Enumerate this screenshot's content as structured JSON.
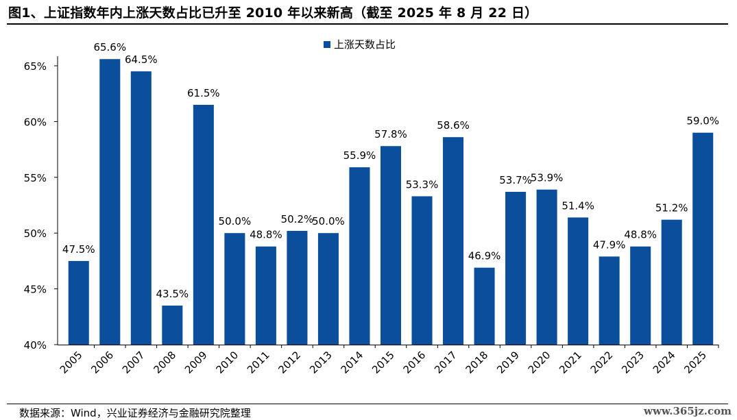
{
  "title": "图1、上证指数年内上涨天数占比已升至 2010 年以来新高（截至 2025 年 8 月 22 日）",
  "source": "数据来源：Wind，兴业证券经济与金融研究院整理",
  "watermark": "www.365jz.com",
  "colors": {
    "bar": "#0b4f9c",
    "axis": "#000000",
    "text": "#000000"
  },
  "chart_data": {
    "type": "bar",
    "title": "",
    "xlabel": "",
    "ylabel": "",
    "ylim": [
      40,
      65
    ],
    "yticks": [
      40,
      45,
      50,
      55,
      60,
      65
    ],
    "ytick_labels": [
      "40%",
      "45%",
      "50%",
      "55%",
      "60%",
      "65%"
    ],
    "grid": false,
    "legend_position": "top-center",
    "categories": [
      "2005",
      "2006",
      "2007",
      "2008",
      "2009",
      "2010",
      "2011",
      "2012",
      "2013",
      "2014",
      "2015",
      "2016",
      "2017",
      "2018",
      "2019",
      "2020",
      "2021",
      "2022",
      "2023",
      "2024",
      "2025"
    ],
    "series": [
      {
        "name": "上涨天数占比",
        "values": [
          47.5,
          65.6,
          64.5,
          43.5,
          61.5,
          50.0,
          48.8,
          50.2,
          50.0,
          55.9,
          57.8,
          53.3,
          58.6,
          46.9,
          53.7,
          53.9,
          51.4,
          47.9,
          48.8,
          51.2,
          59.0
        ],
        "labels": [
          "47.5%",
          "65.6%",
          "64.5%",
          "43.5%",
          "61.5%",
          "50.0%",
          "48.8%",
          "50.2%",
          "50.0%",
          "55.9%",
          "57.8%",
          "53.3%",
          "58.6%",
          "46.9%",
          "53.7%",
          "53.9%",
          "51.4%",
          "47.9%",
          "48.8%",
          "51.2%",
          "59.0%"
        ]
      }
    ]
  }
}
